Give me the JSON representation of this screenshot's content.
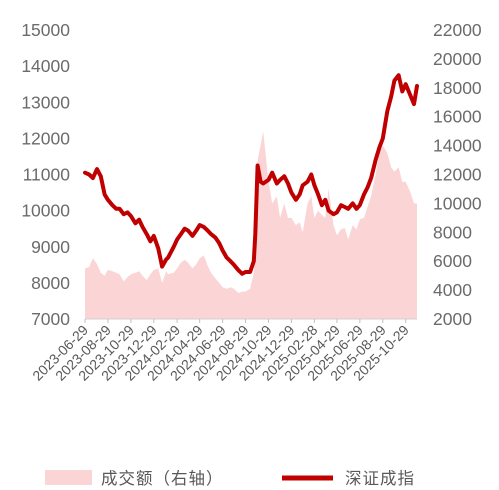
{
  "chart_data": {
    "type": "line",
    "title": "",
    "x": [
      "2023-06-29",
      "2023-07-10",
      "2023-07-20",
      "2023-07-31",
      "2023-08-10",
      "2023-08-20",
      "2023-08-29",
      "2023-09-10",
      "2023-09-20",
      "2023-09-29",
      "2023-10-10",
      "2023-10-20",
      "2023-10-29",
      "2023-11-10",
      "2023-11-20",
      "2023-11-29",
      "2023-12-10",
      "2023-12-20",
      "2023-12-29",
      "2024-01-10",
      "2024-01-20",
      "2024-01-31",
      "2024-02-05",
      "2024-02-20",
      "2024-02-29",
      "2024-03-10",
      "2024-03-20",
      "2024-03-29",
      "2024-04-10",
      "2024-04-20",
      "2024-04-29",
      "2024-05-10",
      "2024-05-20",
      "2024-05-29",
      "2024-06-10",
      "2024-06-20",
      "2024-06-29",
      "2024-07-10",
      "2024-07-20",
      "2024-07-29",
      "2024-08-10",
      "2024-08-20",
      "2024-08-29",
      "2024-09-10",
      "2024-09-20",
      "2024-09-24",
      "2024-09-30",
      "2024-10-08",
      "2024-10-15",
      "2024-10-29",
      "2024-11-08",
      "2024-11-20",
      "2024-11-29",
      "2024-12-10",
      "2024-12-20",
      "2024-12-29",
      "2025-01-10",
      "2025-01-20",
      "2025-01-28",
      "2025-02-10",
      "2025-02-20",
      "2025-02-28",
      "2025-03-10",
      "2025-03-20",
      "2025-03-29",
      "2025-04-07",
      "2025-04-20",
      "2025-04-29",
      "2025-05-10",
      "2025-05-20",
      "2025-05-29",
      "2025-06-10",
      "2025-06-20",
      "2025-06-29",
      "2025-07-10",
      "2025-07-20",
      "2025-07-29",
      "2025-08-10",
      "2025-08-20",
      "2025-08-29",
      "2025-09-10",
      "2025-09-20",
      "2025-09-29",
      "2025-10-10",
      "2025-10-20",
      "2025-10-29",
      "2025-11-10",
      "2025-11-20",
      "2025-11-28"
    ],
    "series": [
      {
        "name": "深证成指",
        "axis": "left",
        "color": "#c00000",
        "values": [
          11050,
          11000,
          10900,
          11150,
          10950,
          10450,
          10300,
          10150,
          10050,
          10050,
          9900,
          9950,
          9850,
          9650,
          9750,
          9550,
          9350,
          9150,
          9300,
          8950,
          8450,
          8650,
          8700,
          9000,
          9200,
          9350,
          9500,
          9450,
          9300,
          9450,
          9600,
          9550,
          9450,
          9350,
          9250,
          9100,
          8900,
          8700,
          8600,
          8500,
          8350,
          8250,
          8300,
          8300,
          8600,
          9350,
          11250,
          10800,
          10750,
          10850,
          11050,
          10750,
          10850,
          10950,
          10750,
          10500,
          10300,
          10450,
          10700,
          10800,
          11000,
          10700,
          10450,
          10150,
          10300,
          10000,
          9900,
          9950,
          10150,
          10100,
          10050,
          10200,
          10050,
          10150,
          10450,
          10650,
          10900,
          11400,
          11750,
          12000,
          12750,
          13150,
          13600,
          13750,
          13300,
          13500,
          13200,
          12950,
          13450
        ]
      },
      {
        "name": "成交额（右轴）",
        "axis": "right",
        "color": "#fbd5d5",
        "values": [
          5500,
          5600,
          6200,
          5800,
          5200,
          5000,
          5400,
          5300,
          5200,
          5100,
          4600,
          4900,
          5100,
          5200,
          5300,
          5000,
          4700,
          5100,
          5400,
          5500,
          4500,
          5300,
          5100,
          5200,
          5500,
          5900,
          6100,
          5900,
          5500,
          5800,
          6200,
          6400,
          5700,
          5200,
          4800,
          4500,
          4200,
          4100,
          4200,
          4100,
          3800,
          3900,
          3900,
          4100,
          5200,
          7000,
          13000,
          14000,
          15000,
          11500,
          10000,
          10500,
          9000,
          10000,
          9000,
          9000,
          8500,
          8700,
          8000,
          10000,
          10500,
          9000,
          9500,
          9200,
          9000,
          11000,
          8500,
          7800,
          8200,
          8300,
          7500,
          8500,
          8200,
          8900,
          9000,
          9800,
          10500,
          12000,
          13500,
          14000,
          13500,
          12500,
          12200,
          12500,
          11500,
          11500,
          10800,
          10000,
          10000
        ]
      }
    ],
    "left_axis": {
      "ylim": [
        7000,
        15000
      ],
      "ticks": [
        7000,
        8000,
        9000,
        10000,
        11000,
        12000,
        13000,
        14000,
        15000
      ]
    },
    "right_axis": {
      "ylim": [
        2000,
        22000
      ],
      "ticks": [
        2000,
        4000,
        6000,
        8000,
        10000,
        12000,
        14000,
        16000,
        18000,
        20000,
        22000
      ]
    },
    "x_tick_labels": [
      "2023-06-29",
      "2023-08-29",
      "2023-10-29",
      "2023-12-29",
      "2024-02-29",
      "2024-04-29",
      "2024-06-29",
      "2024-08-29",
      "2024-10-29",
      "2024-12-29",
      "2025-02-28",
      "2025-04-29",
      "2025-06-29",
      "2025-08-29",
      "2025-10-29"
    ],
    "legend": {
      "position": "bottom",
      "items": [
        "成交额（右轴）",
        "深证成指"
      ]
    },
    "grid": false
  }
}
